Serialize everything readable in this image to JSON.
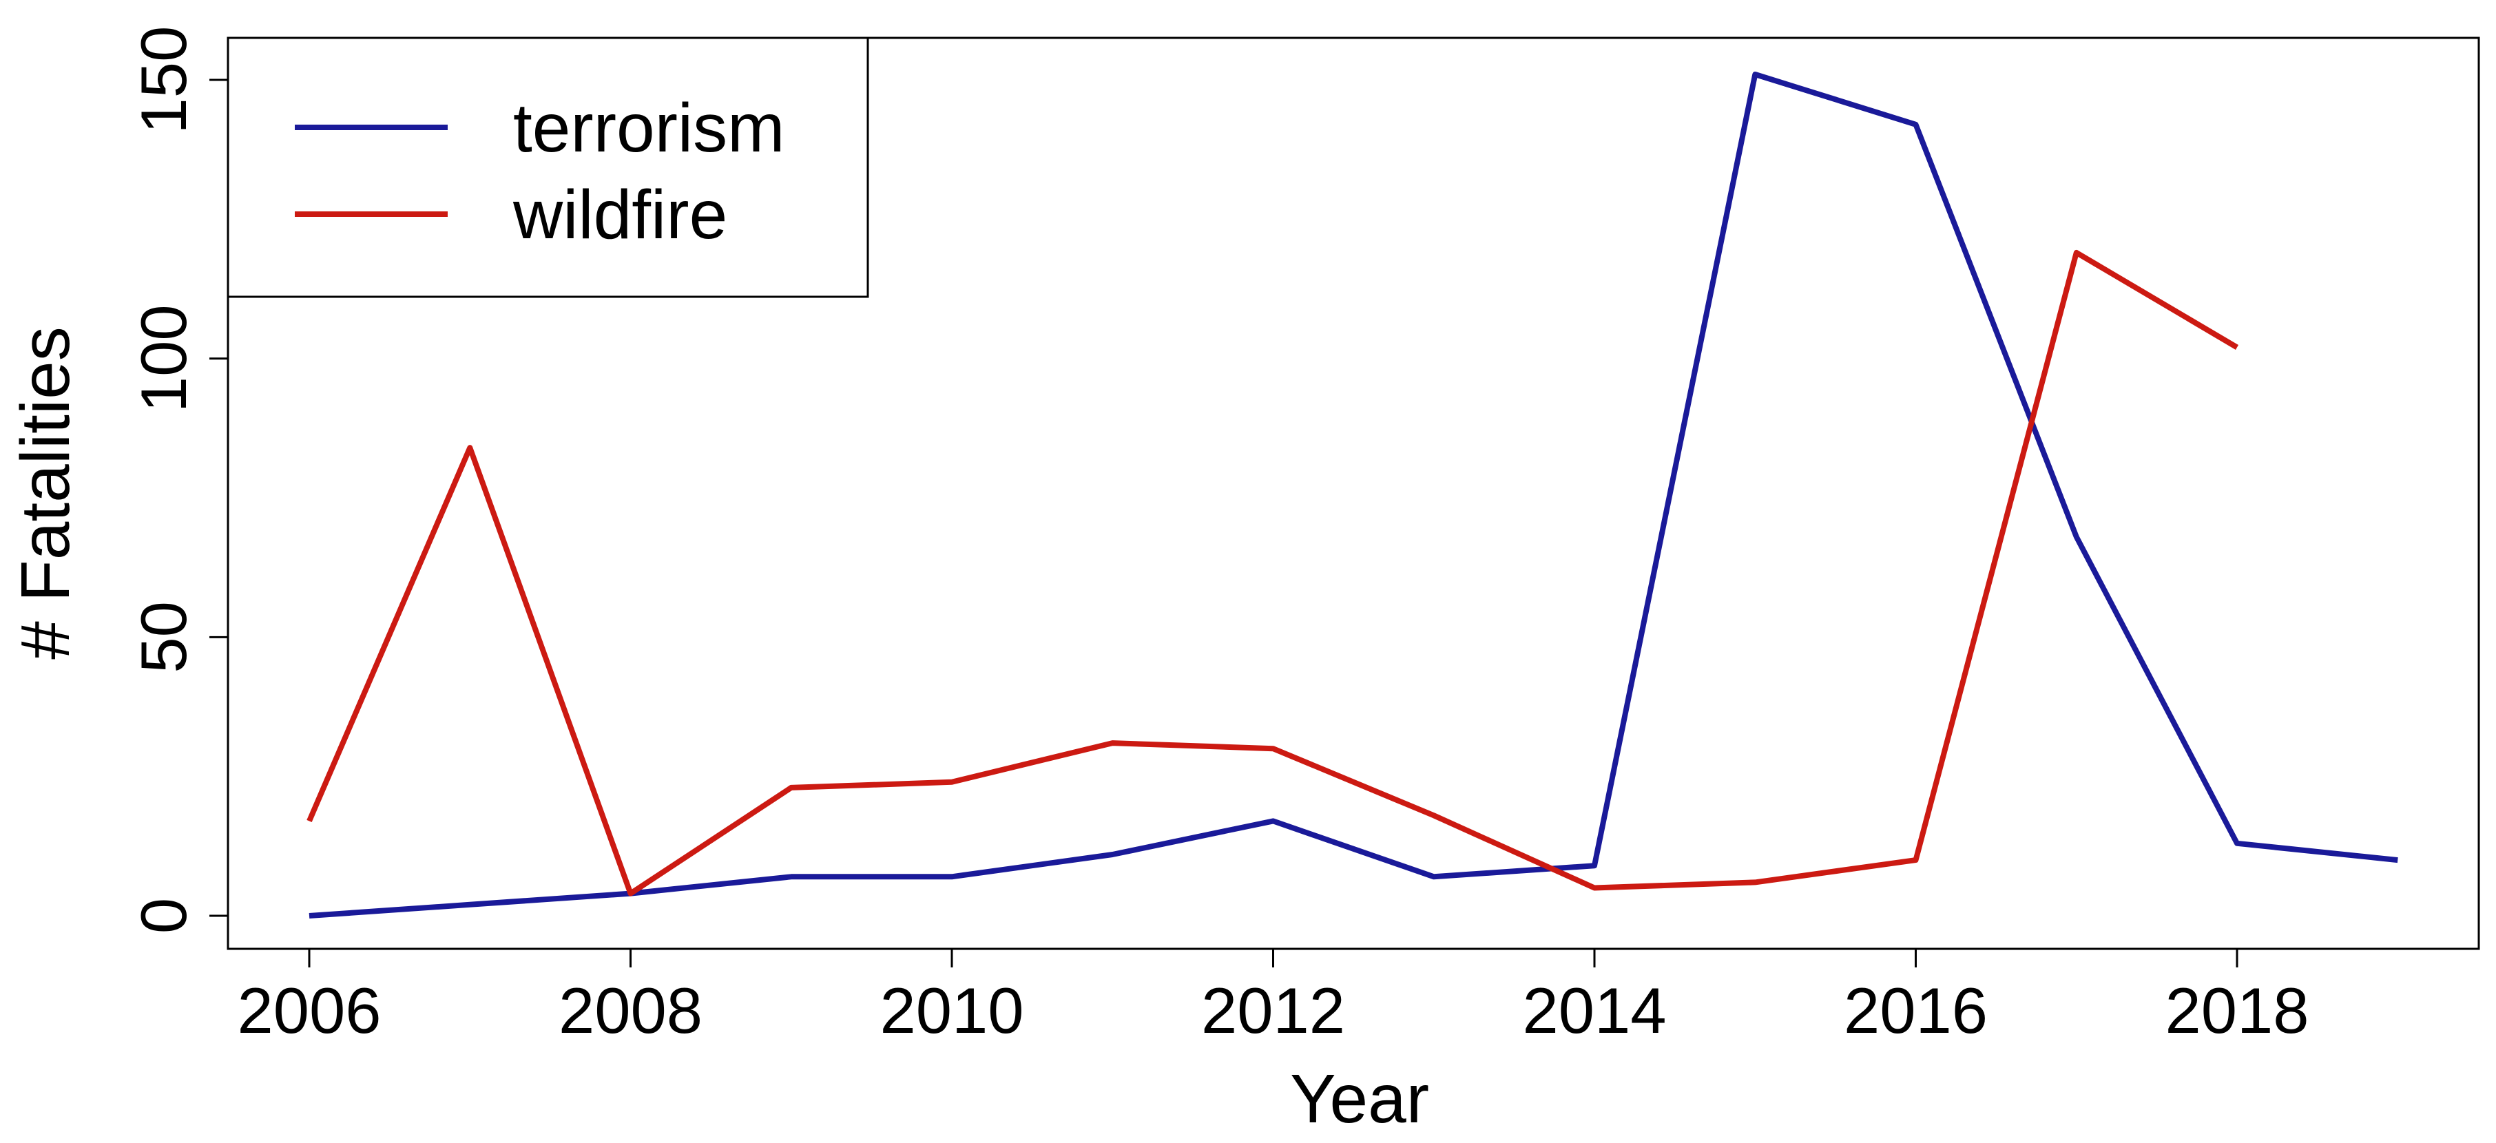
{
  "chart_data": {
    "type": "line",
    "title": "",
    "xlabel": "Year",
    "ylabel": "# Fatalities",
    "xlim": [
      2005.5,
      2019.5
    ],
    "ylim": [
      -6,
      158
    ],
    "x_ticks": [
      2006,
      2008,
      2010,
      2012,
      2014,
      2016,
      2018
    ],
    "y_ticks": [
      0,
      50,
      100,
      150
    ],
    "grid": false,
    "legend": "top-left",
    "series": [
      {
        "name": "terrorism",
        "color": "#1a1a99",
        "x": [
          2006,
          2007,
          2008,
          2009,
          2010,
          2011,
          2012,
          2013,
          2014,
          2015,
          2016,
          2017,
          2018,
          2019
        ],
        "values": [
          0,
          2,
          4,
          7,
          7,
          11,
          17,
          7,
          9,
          151,
          142,
          68,
          13,
          10
        ]
      },
      {
        "name": "wildfire",
        "color": "#cc1a12",
        "x": [
          2006,
          2007,
          2008,
          2009,
          2010,
          2011,
          2012,
          2013,
          2014,
          2015,
          2016,
          2017,
          2018
        ],
        "values": [
          17,
          84,
          4,
          23,
          24,
          31,
          30,
          18,
          5,
          6,
          10,
          119,
          102
        ]
      }
    ]
  }
}
